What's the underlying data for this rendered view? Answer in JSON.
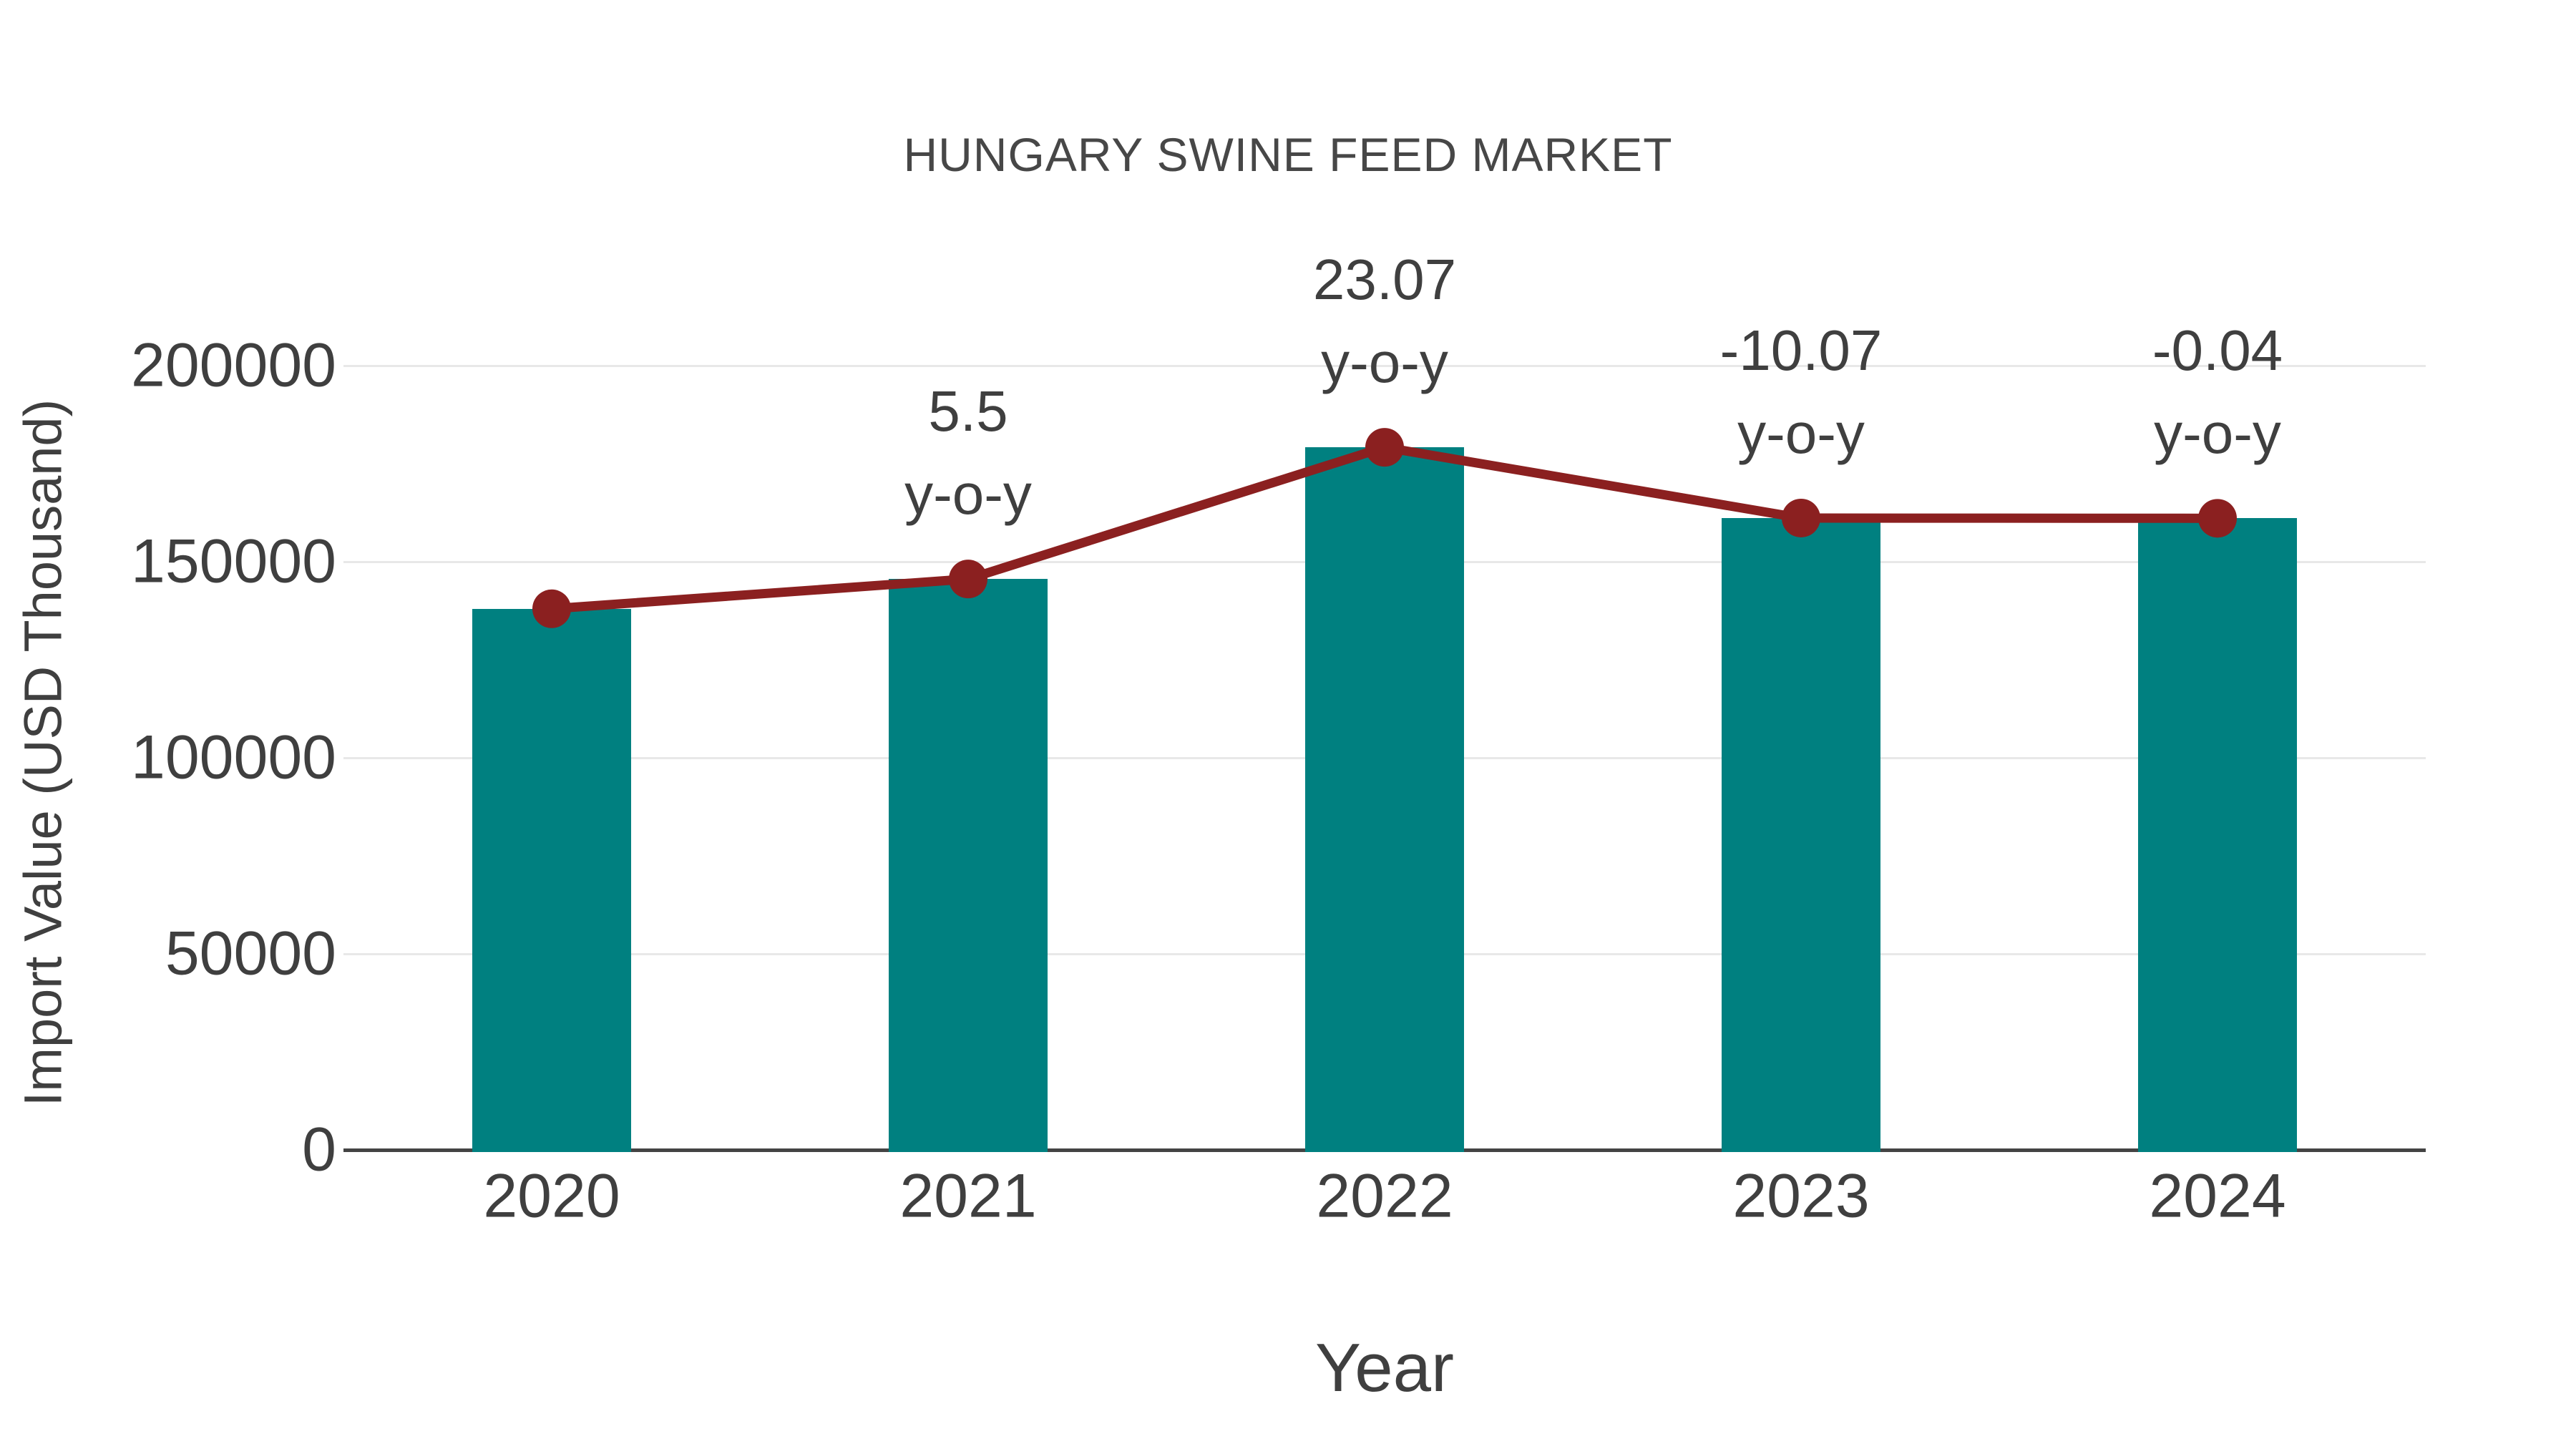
{
  "title": "HUNGARY SWINE FEED MARKET",
  "chart_data": {
    "type": "bar",
    "overlay_line": true,
    "title": "HUNGARY SWINE FEED MARKET",
    "xlabel": "Year",
    "ylabel": "Import Value (USD Thousand)",
    "categories": [
      "2020",
      "2021",
      "2022",
      "2023",
      "2024"
    ],
    "values": [
      138000,
      145590,
      179175,
      161133,
      161069
    ],
    "line_values": [
      138000,
      145590,
      179175,
      161133,
      161069
    ],
    "annotations": [
      {
        "category": "2021",
        "text": "5.5",
        "subtext": "y-o-y"
      },
      {
        "category": "2022",
        "text": "23.07",
        "subtext": "y-o-y"
      },
      {
        "category": "2023",
        "text": "-10.07",
        "subtext": "y-o-y"
      },
      {
        "category": "2024",
        "text": "-0.04",
        "subtext": "y-o-y"
      }
    ],
    "yticks": [
      0,
      50000,
      100000,
      150000,
      200000
    ],
    "ytick_labels": [
      "0",
      "50000",
      "100000",
      "150000",
      "200000"
    ],
    "ylim": [
      0,
      215000
    ],
    "grid": true,
    "legend": false
  },
  "colors": {
    "bar": "#008080",
    "line": "#8B2020",
    "marker": "#8B2020",
    "grid": "#e8e8e8",
    "axis": "#444444",
    "text": "#3f3f3f"
  }
}
